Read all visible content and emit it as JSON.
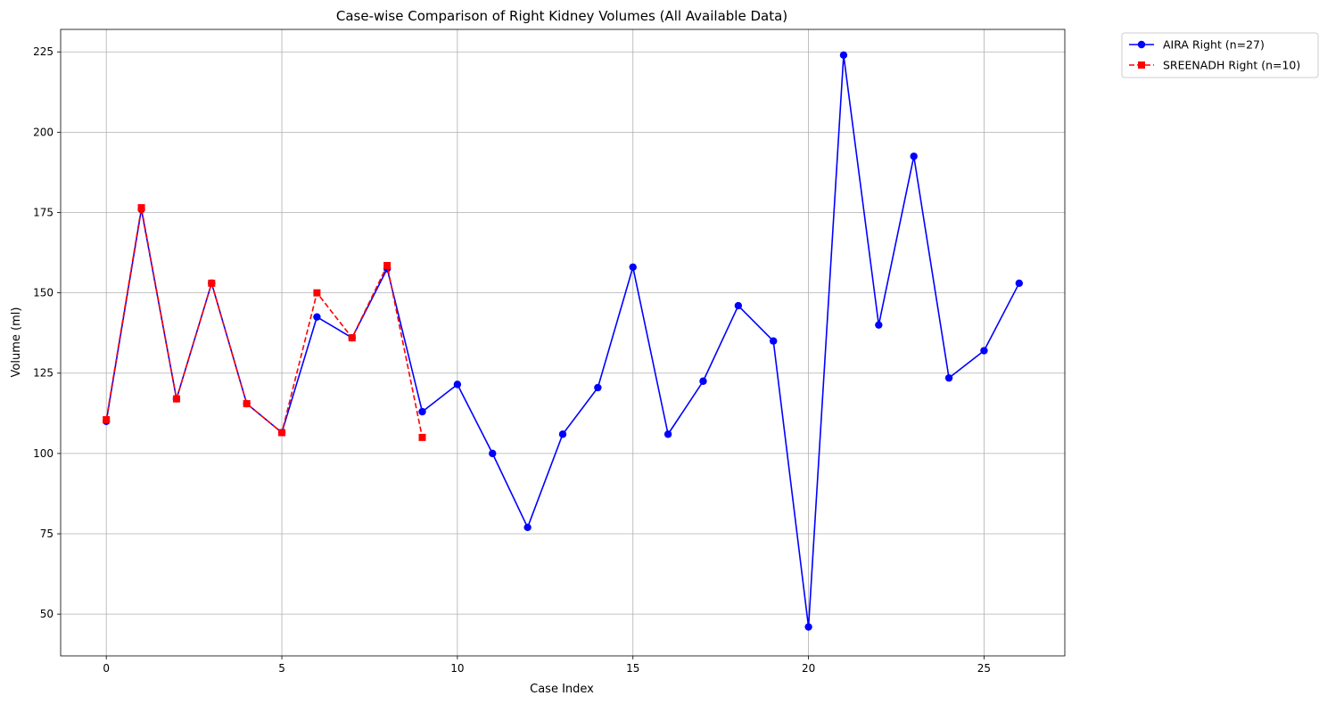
{
  "chart_data": {
    "type": "line",
    "title": "Case-wise Comparison of Right Kidney Volumes (All Available Data)",
    "xlabel": "Case Index",
    "ylabel": "Volume (ml)",
    "xlim": [
      -1.3,
      27.3
    ],
    "ylim": [
      37,
      232
    ],
    "xticks": [
      0,
      5,
      10,
      15,
      20,
      25
    ],
    "yticks": [
      50,
      75,
      100,
      125,
      150,
      175,
      200,
      225
    ],
    "grid": true,
    "legend": "outside-top-right",
    "series": [
      {
        "name": "AIRA Right (n=27)",
        "color": "#0000ff",
        "marker": "circle",
        "linestyle": "solid",
        "x": [
          0,
          1,
          2,
          3,
          4,
          5,
          6,
          7,
          8,
          9,
          10,
          11,
          12,
          13,
          14,
          15,
          16,
          17,
          18,
          19,
          20,
          21,
          22,
          23,
          24,
          25,
          26
        ],
        "values": [
          110,
          176,
          117,
          153,
          115.5,
          106.5,
          142.5,
          136,
          157.5,
          113,
          121.5,
          100,
          77,
          106,
          120.5,
          158,
          106,
          122.5,
          146,
          135,
          46,
          224,
          140,
          192.5,
          123.5,
          132,
          153
        ]
      },
      {
        "name": "SREENADH Right (n=10)",
        "color": "#ff0000",
        "marker": "square",
        "linestyle": "dashed",
        "x": [
          0,
          1,
          2,
          3,
          4,
          5,
          6,
          7,
          8,
          9
        ],
        "values": [
          110.5,
          176.5,
          117,
          153,
          115.5,
          106.5,
          150,
          136,
          158.5,
          105
        ]
      }
    ]
  }
}
